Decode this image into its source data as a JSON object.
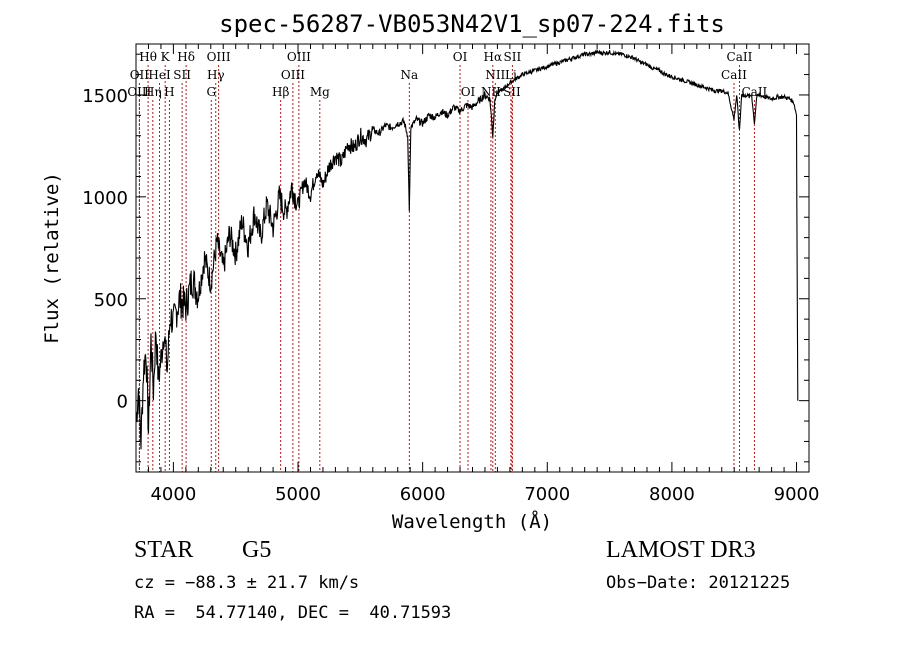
{
  "chart_data": {
    "type": "line",
    "title": "spec-56287-VB053N42V1_sp07-224.fits",
    "xlabel": "Wavelength (Å)",
    "ylabel": "Flux (relative)",
    "xlim": [
      3700,
      9100
    ],
    "ylim": [
      -350,
      1750
    ],
    "x_ticks": [
      4000,
      5000,
      6000,
      7000,
      8000,
      9000
    ],
    "y_ticks": [
      0,
      500,
      1000,
      1500
    ],
    "series": [
      {
        "name": "flux",
        "x": [
          3700,
          3720,
          3740,
          3760,
          3780,
          3800,
          3820,
          3840,
          3860,
          3880,
          3900,
          3925,
          3950,
          3975,
          4000,
          4050,
          4100,
          4150,
          4200,
          4250,
          4300,
          4350,
          4400,
          4450,
          4500,
          4550,
          4600,
          4650,
          4700,
          4750,
          4800,
          4850,
          4900,
          4950,
          5000,
          5050,
          5100,
          5150,
          5200,
          5250,
          5300,
          5350,
          5400,
          5450,
          5500,
          5550,
          5600,
          5650,
          5700,
          5750,
          5800,
          5850,
          5880,
          5893,
          5905,
          5950,
          6000,
          6050,
          6100,
          6150,
          6200,
          6250,
          6300,
          6350,
          6400,
          6450,
          6500,
          6540,
          6563,
          6580,
          6600,
          6650,
          6700,
          6750,
          6800,
          6850,
          6900,
          6950,
          7000,
          7050,
          7100,
          7150,
          7200,
          7250,
          7300,
          7350,
          7400,
          7450,
          7500,
          7550,
          7600,
          7650,
          7700,
          7750,
          7800,
          7850,
          7900,
          7950,
          8000,
          8050,
          8100,
          8150,
          8200,
          8250,
          8300,
          8350,
          8400,
          8450,
          8498,
          8520,
          8542,
          8560,
          8580,
          8600,
          8620,
          8640,
          8662,
          8680,
          8700,
          8750,
          8800,
          8850,
          8900,
          8950,
          8980,
          9000,
          9005,
          9010
        ],
        "y": [
          -100,
          60,
          -200,
          150,
          250,
          -150,
          300,
          50,
          350,
          100,
          200,
          350,
          150,
          420,
          380,
          500,
          460,
          600,
          520,
          700,
          580,
          780,
          650,
          820,
          720,
          880,
          760,
          920,
          800,
          960,
          850,
          1000,
          920,
          1050,
          960,
          1080,
          1010,
          1130,
          1060,
          1150,
          1200,
          1170,
          1260,
          1240,
          1300,
          1280,
          1330,
          1310,
          1350,
          1340,
          1360,
          1370,
          1300,
          930,
          1340,
          1380,
          1360,
          1400,
          1390,
          1420,
          1400,
          1440,
          1420,
          1450,
          1440,
          1470,
          1500,
          1480,
          1300,
          1490,
          1510,
          1530,
          1560,
          1580,
          1600,
          1610,
          1620,
          1630,
          1640,
          1650,
          1660,
          1670,
          1680,
          1690,
          1700,
          1700,
          1710,
          1705,
          1710,
          1700,
          1700,
          1690,
          1680,
          1660,
          1650,
          1630,
          1620,
          1600,
          1590,
          1580,
          1570,
          1560,
          1550,
          1540,
          1530,
          1520,
          1520,
          1510,
          1380,
          1500,
          1320,
          1510,
          1490,
          1500,
          1490,
          1500,
          1360,
          1490,
          1500,
          1490,
          1480,
          1490,
          1490,
          1480,
          1460,
          1400,
          600,
          0
        ]
      }
    ],
    "spectral_lines": [
      {
        "label": "Hθ",
        "x": 3797,
        "row": 0
      },
      {
        "label": "K",
        "x": 3934,
        "row": 0
      },
      {
        "label": "Hδ",
        "x": 4102,
        "row": 0
      },
      {
        "label": "OIII",
        "x": 4363,
        "row": 0
      },
      {
        "label": "OIII",
        "x": 5007,
        "row": 0
      },
      {
        "label": "OI",
        "x": 6300,
        "row": 0
      },
      {
        "label": "Hα",
        "x": 6563,
        "row": 0
      },
      {
        "label": "SII",
        "x": 6720,
        "row": 0
      },
      {
        "label": "CaII",
        "x": 8542,
        "row": 0
      },
      {
        "label": "OII",
        "x": 3727,
        "row": 1
      },
      {
        "label": "HeI",
        "x": 3889,
        "row": 1
      },
      {
        "label": "SII",
        "x": 4070,
        "row": 1
      },
      {
        "label": "Hγ",
        "x": 4340,
        "row": 1
      },
      {
        "label": "OIII",
        "x": 4959,
        "row": 1
      },
      {
        "label": "Na",
        "x": 5893,
        "row": 1
      },
      {
        "label": "NII",
        "x": 6583,
        "row": 1
      },
      {
        "label": "Li",
        "x": 6708,
        "row": 1
      },
      {
        "label": "CaII",
        "x": 8498,
        "row": 1
      },
      {
        "label": "OIII",
        "x": 3727,
        "row": 2
      },
      {
        "label": "Hη",
        "x": 3835,
        "row": 2
      },
      {
        "label": "H",
        "x": 3968,
        "row": 2
      },
      {
        "label": "G",
        "x": 4304,
        "row": 2
      },
      {
        "label": "Hβ",
        "x": 4861,
        "row": 2
      },
      {
        "label": "Mg",
        "x": 5175,
        "row": 2
      },
      {
        "label": "OI",
        "x": 6364,
        "row": 2
      },
      {
        "label": "NII",
        "x": 6548,
        "row": 2
      },
      {
        "label": "SII",
        "x": 6716,
        "row": 2
      },
      {
        "label": "CaII",
        "x": 8662,
        "row": 2
      }
    ]
  },
  "footer": {
    "object_type": "STAR",
    "subclass": "G5",
    "survey": "LAMOST DR3",
    "cz": "cz = −88.3 ± 21.7 km/s",
    "obs_date": "Obs−Date: 20121225",
    "coords": "RA =  54.77140, DEC =  40.71593"
  },
  "colors": {
    "axis": "#000000",
    "spectrum": "#000000",
    "line_marker": "#b00000"
  }
}
